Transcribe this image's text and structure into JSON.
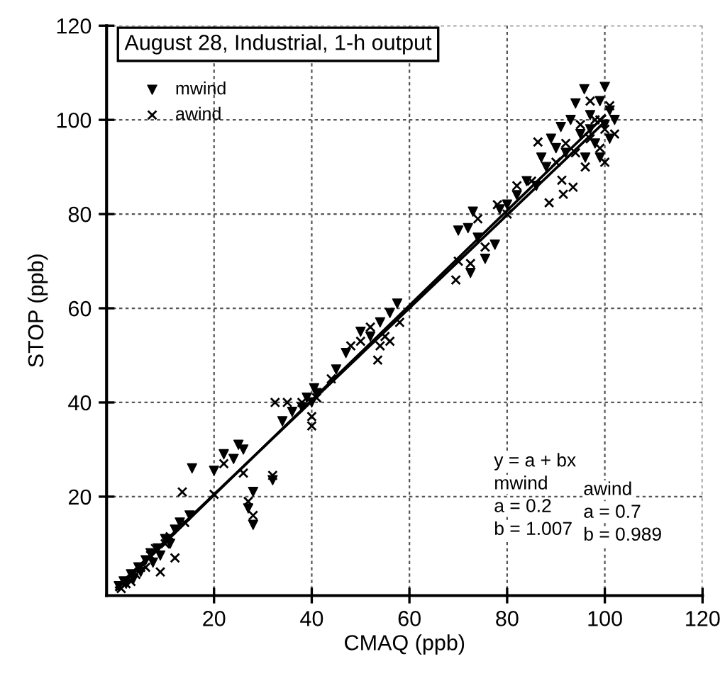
{
  "chart_data": {
    "type": "scatter",
    "title": "August 28, Industrial, 1-h output",
    "xlabel": "CMAQ (ppb)",
    "ylabel": "STOP (ppb)",
    "xlim": [
      -2,
      120
    ],
    "ylim": [
      -1,
      120
    ],
    "xticks": [
      20,
      40,
      60,
      80,
      100,
      120
    ],
    "yticks": [
      20,
      40,
      60,
      80,
      100,
      120
    ],
    "grid": true,
    "legend": "top left",
    "annotations": [
      "y = a + bx",
      "mwind",
      "a = 0.2",
      "b = 1.007",
      "awind",
      "a = 0.7",
      "b = 0.989"
    ],
    "series": [
      {
        "name": "mwind",
        "marker": "triangle",
        "color": "#000000",
        "x": [
          0.5,
          1.5,
          2,
          3,
          3.5,
          4.5,
          5,
          6,
          7,
          7.5,
          8.5,
          9,
          10,
          11,
          12,
          13,
          15,
          15.5,
          20,
          22,
          24,
          25,
          26,
          27,
          28,
          28,
          32,
          34,
          36,
          38,
          39,
          40,
          41,
          40.5,
          45,
          47,
          50,
          52,
          54,
          56,
          57.5,
          70,
          72,
          72.5,
          74,
          75.5,
          73,
          77.5,
          78.5,
          80,
          82,
          84,
          86,
          87,
          88,
          89,
          90,
          91,
          92,
          93,
          94,
          95,
          95.8,
          96,
          97,
          98,
          99,
          100,
          100,
          101,
          101,
          102,
          99,
          97
        ],
        "values": [
          1,
          2,
          1.5,
          3.5,
          2.5,
          5,
          4,
          6.5,
          8,
          6,
          9,
          7.5,
          11,
          10,
          13,
          14.5,
          16,
          26,
          25.5,
          29,
          28,
          31,
          30,
          17.5,
          14,
          21,
          23.5,
          36,
          38,
          39,
          41,
          40,
          42,
          43,
          47,
          50.5,
          55,
          54,
          57,
          59,
          61,
          76.5,
          77,
          67.5,
          75,
          70.5,
          80.5,
          73.5,
          81,
          82,
          84,
          87,
          86,
          92,
          90,
          96,
          94,
          98.5,
          93,
          100,
          103.5,
          97,
          106.5,
          92,
          101,
          95,
          104,
          107,
          99,
          102,
          96,
          100,
          92,
          98
        ]
      },
      {
        "name": "awind",
        "marker": "cross",
        "color": "#000000",
        "x": [
          1,
          2,
          3,
          4,
          5,
          6,
          7,
          8,
          9,
          10,
          11,
          12,
          14,
          13.5,
          20,
          22,
          26,
          27,
          28,
          32,
          32.5,
          35,
          38,
          40,
          40,
          41,
          44,
          48,
          50,
          52,
          53.5,
          54,
          55,
          56,
          58,
          70,
          69.5,
          72.5,
          75.5,
          74,
          78,
          80,
          82,
          85,
          86.3,
          88.6,
          91.5,
          93.5,
          91.2,
          90,
          92,
          94,
          95,
          96,
          97,
          98,
          99,
          100,
          101,
          102,
          100,
          97,
          99
        ],
        "values": [
          0.5,
          1.5,
          2,
          3.5,
          5,
          5,
          7.5,
          9,
          4,
          10,
          11.5,
          7,
          14.5,
          21,
          20.5,
          27,
          25,
          19,
          16,
          24.5,
          40,
          40,
          40,
          37,
          35,
          41,
          45,
          52,
          53,
          56,
          49,
          52,
          54,
          53,
          57,
          70,
          66,
          69.5,
          73,
          79,
          82,
          80,
          86,
          87,
          95.3,
          82.4,
          84.2,
          85.7,
          87.2,
          91,
          95,
          93,
          99,
          90,
          96,
          100,
          94,
          98,
          103,
          97,
          91,
          104,
          100
        ]
      },
      {
        "type": "line",
        "marker": "none",
        "color": "#000000",
        "x": [
          0,
          100
        ],
        "values": [
          0.2,
          100.9
        ]
      },
      {
        "type": "line",
        "marker": "none",
        "color": "#000000",
        "x": [
          0,
          100
        ],
        "values": [
          0.7,
          99.6
        ]
      }
    ]
  }
}
